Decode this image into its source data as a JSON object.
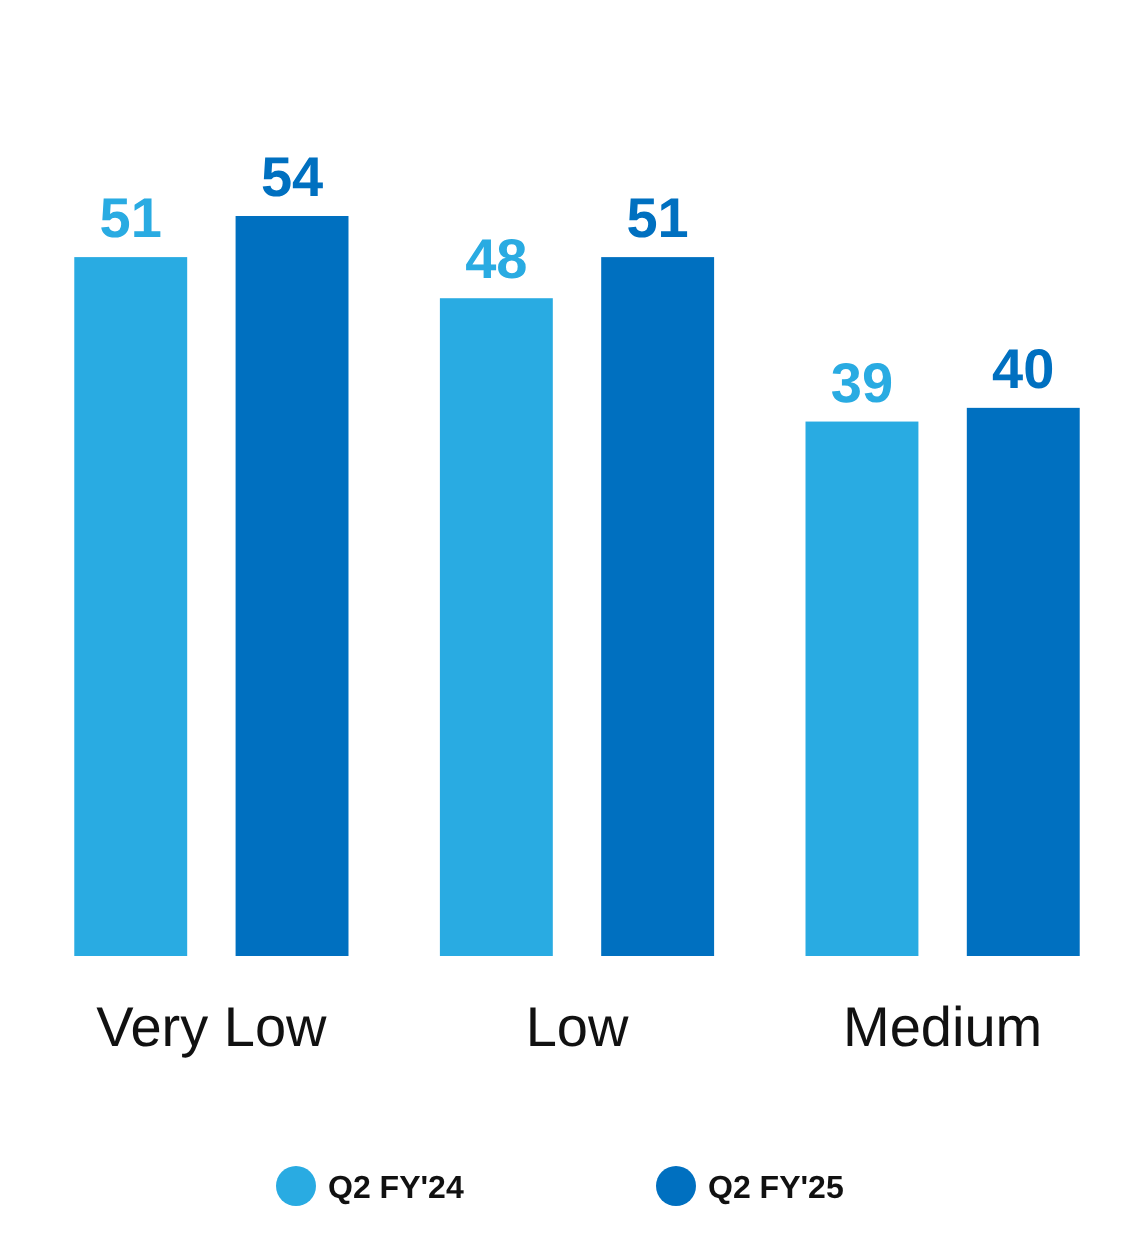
{
  "chart_data": {
    "type": "bar",
    "categories": [
      "Very Low",
      "Low",
      "Medium"
    ],
    "series": [
      {
        "name": "Q2 FY'24",
        "color": "#29abe2",
        "values": [
          51,
          48,
          39
        ]
      },
      {
        "name": "Q2 FY'25",
        "color": "#0070c0",
        "values": [
          54,
          51,
          40
        ]
      }
    ],
    "data_labels": true,
    "legend": "bottom"
  }
}
